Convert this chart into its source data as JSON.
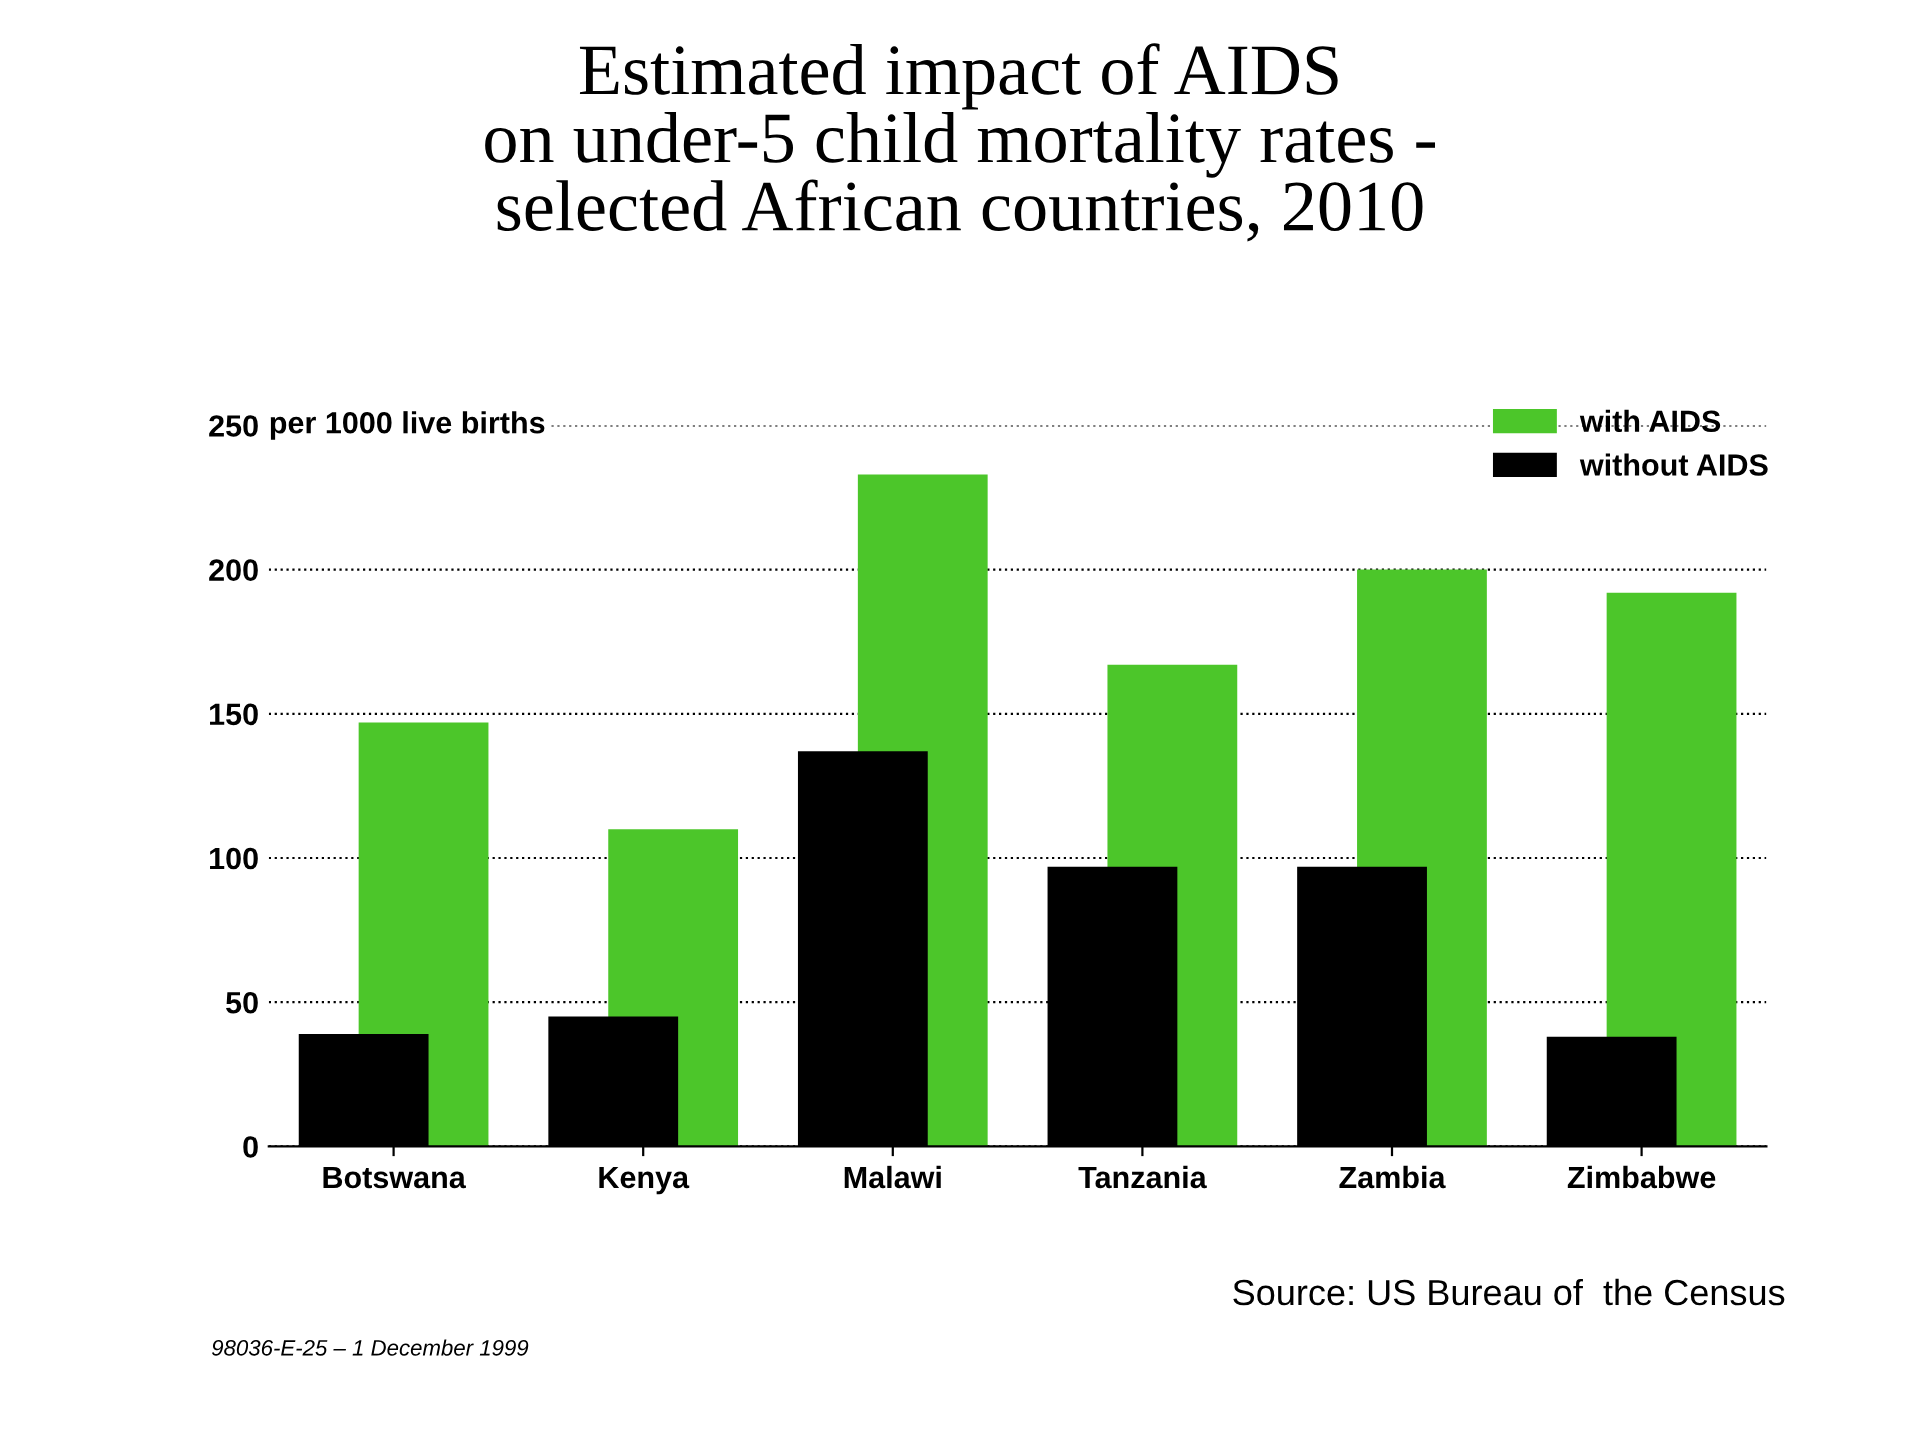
{
  "chart_data": {
    "type": "bar",
    "title": "Estimated impact of AIDS\non under-5 child mortality rates -\nselected African countries, 2010",
    "ylabel": "per 1000 live births",
    "categories": [
      "Botswana",
      "Kenya",
      "Malawi",
      "Tanzania",
      "Zambia",
      "Zimbabwe"
    ],
    "series": [
      {
        "name": "with AIDS",
        "color": "#4cc62a",
        "values": [
          147,
          110,
          233,
          167,
          200,
          192
        ]
      },
      {
        "name": "without AIDS",
        "color": "#000000",
        "values": [
          39,
          45,
          137,
          97,
          97,
          38
        ]
      }
    ],
    "ylim": [
      0,
      250
    ],
    "yticks": [
      0,
      50,
      100,
      150,
      200,
      250
    ],
    "grid": "y",
    "legend": "top right",
    "annotations": [
      "Source: US Bureau of  the Census",
      "98036-E-25 – 1 December 1999"
    ]
  }
}
